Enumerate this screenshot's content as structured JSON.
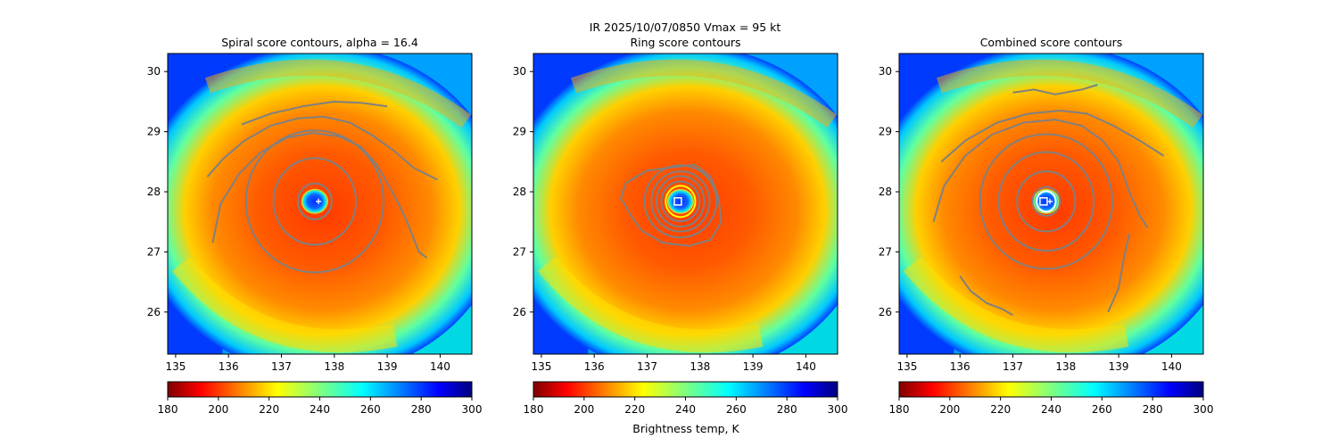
{
  "figure": {
    "suptitle_line1": "IR  2025/10/07/0850    Vmax = 95 kt",
    "colorbar_label": "Brightness temp, K"
  },
  "chart_data": [
    {
      "type": "heatmap",
      "title": "Spiral score contours, alpha = 16.4",
      "xlim": [
        134.85,
        140.6
      ],
      "ylim": [
        25.3,
        30.3
      ],
      "xticks": [
        "135",
        "136",
        "137",
        "138",
        "139",
        "140"
      ],
      "yticks": [
        "26",
        "27",
        "28",
        "29",
        "30"
      ],
      "field": "brightness_temperature_K",
      "center": [
        137.63,
        27.84
      ],
      "contour_color": "#808080",
      "contours": [
        {
          "kind": "ring",
          "rx": 0.32,
          "ry": 0.3
        },
        {
          "kind": "ring",
          "rx": 0.78,
          "ry": 0.72
        },
        {
          "kind": "ring",
          "rx": 1.3,
          "ry": 1.18
        },
        {
          "kind": "polyline",
          "points": [
            [
              135.7,
              27.15
            ],
            [
              135.85,
              27.8
            ],
            [
              136.2,
              28.3
            ],
            [
              136.6,
              28.65
            ],
            [
              137.1,
              28.9
            ],
            [
              137.6,
              28.98
            ],
            [
              138.1,
              28.92
            ],
            [
              138.5,
              28.75
            ],
            [
              138.8,
              28.45
            ],
            [
              139.1,
              28.0
            ],
            [
              139.35,
              27.55
            ],
            [
              139.6,
              27.0
            ],
            [
              139.75,
              26.9
            ]
          ]
        },
        {
          "kind": "polyline",
          "points": [
            [
              135.6,
              28.25
            ],
            [
              135.9,
              28.55
            ],
            [
              136.3,
              28.85
            ],
            [
              136.8,
              29.1
            ],
            [
              137.3,
              29.22
            ],
            [
              137.8,
              29.25
            ],
            [
              138.3,
              29.15
            ],
            [
              138.7,
              28.95
            ],
            [
              139.1,
              28.7
            ],
            [
              139.5,
              28.4
            ],
            [
              139.95,
              28.2
            ]
          ]
        },
        {
          "kind": "polyline",
          "points": [
            [
              136.25,
              29.12
            ],
            [
              136.8,
              29.3
            ],
            [
              137.4,
              29.42
            ],
            [
              138.0,
              29.5
            ],
            [
              138.5,
              29.48
            ],
            [
              139.0,
              29.42
            ]
          ]
        }
      ],
      "markers": [
        {
          "x": 137.7,
          "y": 27.84,
          "shape": "plus",
          "color": "#ffffff"
        }
      ],
      "colorbar": {
        "vmin": 180,
        "vmax": 300,
        "ticks": [
          "180",
          "200",
          "220",
          "240",
          "260",
          "280",
          "300"
        ],
        "colormap": "jet_reversed"
      }
    },
    {
      "type": "heatmap",
      "title": "Ring score contours",
      "xlim": [
        134.85,
        140.6
      ],
      "ylim": [
        25.3,
        30.3
      ],
      "xticks": [
        "135",
        "136",
        "137",
        "138",
        "139",
        "140"
      ],
      "yticks": [
        "26",
        "27",
        "28",
        "29",
        "30"
      ],
      "field": "brightness_temperature_K",
      "center": [
        137.63,
        27.84
      ],
      "contour_color": "#808080",
      "contours": [
        {
          "kind": "ring",
          "rx": 0.28,
          "ry": 0.26,
          "color": "#ffff00"
        },
        {
          "kind": "ring",
          "rx": 0.36,
          "ry": 0.33
        },
        {
          "kind": "ring",
          "rx": 0.45,
          "ry": 0.42
        },
        {
          "kind": "ring",
          "rx": 0.55,
          "ry": 0.5
        },
        {
          "kind": "ring",
          "rx": 0.68,
          "ry": 0.6
        },
        {
          "kind": "polyline",
          "points": [
            [
              136.6,
              28.15
            ],
            [
              136.5,
              27.9
            ],
            [
              136.7,
              27.6
            ],
            [
              136.9,
              27.35
            ],
            [
              137.3,
              27.15
            ],
            [
              137.8,
              27.1
            ],
            [
              138.2,
              27.2
            ],
            [
              138.4,
              27.5
            ],
            [
              138.35,
              27.9
            ],
            [
              138.2,
              28.25
            ],
            [
              137.9,
              28.45
            ],
            [
              137.4,
              28.4
            ],
            [
              137.0,
              28.35
            ],
            [
              136.6,
              28.15
            ]
          ]
        }
      ],
      "markers": [
        {
          "x": 137.58,
          "y": 27.84,
          "shape": "square",
          "color": "#ffffff"
        }
      ],
      "colorbar": {
        "vmin": 180,
        "vmax": 300,
        "ticks": [
          "180",
          "200",
          "220",
          "240",
          "260",
          "280",
          "300"
        ],
        "colormap": "jet_reversed"
      }
    },
    {
      "type": "heatmap",
      "title": "Combined score contours",
      "xlim": [
        134.85,
        140.6
      ],
      "ylim": [
        25.3,
        30.3
      ],
      "xticks": [
        "135",
        "136",
        "137",
        "138",
        "139",
        "140"
      ],
      "yticks": [
        "26",
        "27",
        "28",
        "29",
        "30"
      ],
      "field": "brightness_temperature_K",
      "center": [
        137.63,
        27.84
      ],
      "contour_color": "#808080",
      "contours": [
        {
          "kind": "ring",
          "rx": 0.18,
          "ry": 0.17,
          "color": "#ffffff"
        },
        {
          "kind": "ring",
          "rx": 0.26,
          "ry": 0.24
        },
        {
          "kind": "ring",
          "rx": 0.55,
          "ry": 0.5
        },
        {
          "kind": "ring",
          "rx": 0.9,
          "ry": 0.82
        },
        {
          "kind": "ring",
          "rx": 1.25,
          "ry": 1.12
        },
        {
          "kind": "polyline",
          "points": [
            [
              135.5,
              27.5
            ],
            [
              135.7,
              28.1
            ],
            [
              136.1,
              28.6
            ],
            [
              136.6,
              28.95
            ],
            [
              137.2,
              29.15
            ],
            [
              137.8,
              29.2
            ],
            [
              138.3,
              29.1
            ],
            [
              138.7,
              28.85
            ],
            [
              139.0,
              28.5
            ],
            [
              139.2,
              28.0
            ],
            [
              139.4,
              27.6
            ],
            [
              139.55,
              27.4
            ]
          ]
        },
        {
          "kind": "polyline",
          "points": [
            [
              135.65,
              28.5
            ],
            [
              136.1,
              28.85
            ],
            [
              136.7,
              29.15
            ],
            [
              137.3,
              29.3
            ],
            [
              137.9,
              29.35
            ],
            [
              138.4,
              29.3
            ],
            [
              138.9,
              29.1
            ],
            [
              139.4,
              28.85
            ],
            [
              139.85,
              28.6
            ]
          ]
        },
        {
          "kind": "polyline",
          "points": [
            [
              137.0,
              29.65
            ],
            [
              137.4,
              29.7
            ],
            [
              137.8,
              29.62
            ],
            [
              138.3,
              29.7
            ],
            [
              138.6,
              29.78
            ]
          ]
        },
        {
          "kind": "polyline",
          "points": [
            [
              136.0,
              26.6
            ],
            [
              136.2,
              26.35
            ],
            [
              136.5,
              26.15
            ],
            [
              136.8,
              26.05
            ],
            [
              137.0,
              25.95
            ]
          ]
        },
        {
          "kind": "polyline",
          "points": [
            [
              138.8,
              26.0
            ],
            [
              139.0,
              26.4
            ],
            [
              139.1,
              26.9
            ],
            [
              139.2,
              27.3
            ]
          ]
        }
      ],
      "markers": [
        {
          "x": 137.58,
          "y": 27.84,
          "shape": "square",
          "color": "#ffffff"
        },
        {
          "x": 137.7,
          "y": 27.84,
          "shape": "plus",
          "color": "#ffffff"
        }
      ],
      "colorbar": {
        "vmin": 180,
        "vmax": 300,
        "ticks": [
          "180",
          "200",
          "220",
          "240",
          "260",
          "280",
          "300"
        ],
        "colormap": "jet_reversed"
      }
    }
  ]
}
